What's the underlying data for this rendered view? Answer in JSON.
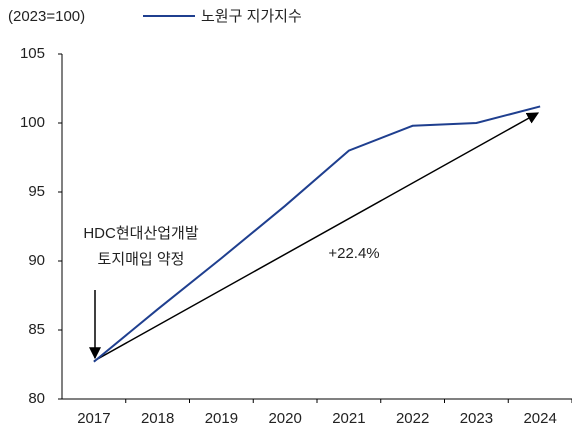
{
  "chart_data": {
    "type": "line",
    "subtitle": "(2023=100)",
    "categories": [
      "2017",
      "2018",
      "2019",
      "2020",
      "2021",
      "2022",
      "2023",
      "2024"
    ],
    "series": [
      {
        "name": "노원구 지가지수",
        "color": "#1f3f8f",
        "values": [
          82.7,
          86.5,
          90.2,
          94.0,
          98.0,
          99.8,
          100.0,
          101.2
        ]
      }
    ],
    "ylim": [
      80,
      105
    ],
    "yticks": [
      80,
      85,
      90,
      95,
      100,
      105
    ],
    "annotations": [
      "HDC현대산업개발",
      "토지매입 약정",
      "+22.4%"
    ]
  }
}
